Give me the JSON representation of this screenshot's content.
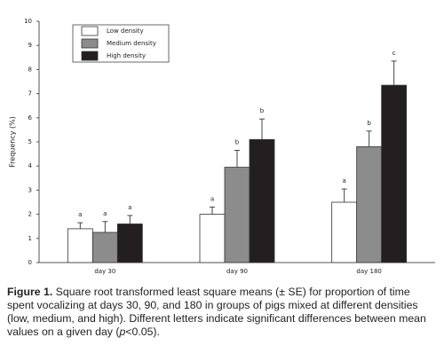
{
  "chart_data": {
    "type": "bar",
    "y_label": "Frequency (%)",
    "categories": [
      "day 30",
      "day 90",
      "day 180"
    ],
    "series": [
      {
        "name": "Low density",
        "color": "#ffffff",
        "values": [
          1.4,
          2.0,
          2.5
        ],
        "errors": [
          0.25,
          0.3,
          0.55
        ],
        "letters": [
          "a",
          "a",
          "a"
        ]
      },
      {
        "name": "Medium density",
        "color": "#8c8c8c",
        "values": [
          1.25,
          3.95,
          4.8
        ],
        "errors": [
          0.45,
          0.7,
          0.65
        ],
        "letters": [
          "a",
          "b",
          "b"
        ]
      },
      {
        "name": "High density",
        "color": "#231f20",
        "values": [
          1.6,
          5.1,
          7.35
        ],
        "errors": [
          0.35,
          0.85,
          1.0
        ],
        "letters": [
          "a",
          "b",
          "c"
        ]
      }
    ],
    "ylim": [
      0,
      10
    ],
    "yticks": [
      0,
      1,
      2,
      3,
      4,
      5,
      6,
      7,
      8,
      9,
      10
    ],
    "grid": false
  },
  "caption": {
    "label": "Figure 1.",
    "text": "Square root transformed least square means (± SE) for proportion of time spent vocalizing at days 30, 90, and 180 in groups of pigs mixed at different densities (low, medium, and high). Different letters indicate significant differences between mean values on a given day (",
    "italic": "p",
    "end": "<0.05)."
  }
}
